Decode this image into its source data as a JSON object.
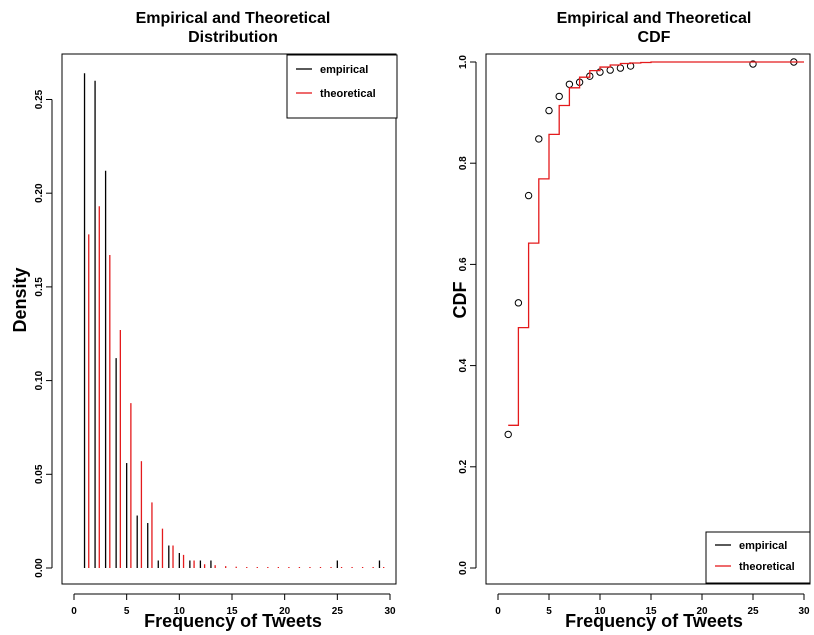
{
  "colors": {
    "empirical": "#000000",
    "theoretical": "#e41a1c"
  },
  "chart_data": [
    {
      "type": "bar",
      "title": "Empirical and Theoretical\nDistribution",
      "xlabel": "Frequency of Tweets",
      "ylabel": "Density",
      "xlim": [
        0,
        30
      ],
      "ylim": [
        0,
        0.27
      ],
      "xticks": [
        0,
        5,
        10,
        15,
        20,
        25,
        30
      ],
      "yticks": [
        0.0,
        0.05,
        0.1,
        0.15,
        0.2,
        0.25
      ],
      "legend": {
        "placement": "top-right",
        "entries": [
          "empirical",
          "theoretical"
        ]
      },
      "series": [
        {
          "name": "empirical",
          "x": [
            1,
            2,
            3,
            4,
            5,
            6,
            7,
            8,
            9,
            10,
            11,
            12,
            13,
            25,
            29
          ],
          "values": [
            0.264,
            0.26,
            0.212,
            0.112,
            0.056,
            0.028,
            0.024,
            0.004,
            0.012,
            0.008,
            0.004,
            0.004,
            0.004,
            0.004,
            0.004
          ]
        },
        {
          "name": "theoretical",
          "x": [
            1.4,
            2.4,
            3.4,
            4.4,
            5.4,
            6.4,
            7.4,
            8.4,
            9.4,
            10.4,
            11.4,
            12.4,
            13.4,
            14.4,
            15.4,
            16.4,
            17.4,
            18.4,
            19.4,
            20.4,
            21.4,
            22.4,
            23.4,
            24.4,
            25.4,
            26.4,
            27.4,
            28.4,
            29.4
          ],
          "values": [
            0.178,
            0.193,
            0.167,
            0.127,
            0.088,
            0.057,
            0.035,
            0.021,
            0.012,
            0.007,
            0.004,
            0.002,
            0.0015,
            0.001,
            0.0007,
            0.0005,
            0.0004,
            0.0003,
            0.0002,
            0.0002,
            0.0001,
            0.0001,
            0.0001,
            0.0001,
            0.0001,
            0.0001,
            0.0001,
            0.0001,
            0.0001
          ]
        }
      ]
    },
    {
      "type": "line",
      "title": "Empirical and Theoretical\nCDF",
      "xlabel": "Frequency of Tweets",
      "ylabel": "CDF",
      "xlim": [
        0,
        30
      ],
      "ylim": [
        0,
        1
      ],
      "xticks": [
        0,
        5,
        10,
        15,
        20,
        25,
        30
      ],
      "yticks": [
        0.0,
        0.2,
        0.4,
        0.6,
        0.8,
        1.0
      ],
      "legend": {
        "placement": "bottom-right",
        "entries": [
          "empirical",
          "theoretical"
        ]
      },
      "series": [
        {
          "name": "empirical",
          "style": "points",
          "x": [
            1,
            2,
            3,
            4,
            5,
            6,
            7,
            8,
            9,
            10,
            11,
            12,
            13,
            25,
            29
          ],
          "y": [
            0.264,
            0.524,
            0.736,
            0.848,
            0.904,
            0.932,
            0.956,
            0.96,
            0.972,
            0.98,
            0.984,
            0.988,
            0.992,
            0.996,
            1.0
          ]
        },
        {
          "name": "theoretical",
          "style": "step",
          "x": [
            1,
            2,
            3,
            4,
            5,
            6,
            7,
            8,
            9,
            10,
            11,
            12,
            13,
            14,
            15,
            30
          ],
          "y": [
            0.282,
            0.475,
            0.642,
            0.769,
            0.857,
            0.914,
            0.949,
            0.97,
            0.983,
            0.99,
            0.994,
            0.997,
            0.998,
            0.999,
            1.0,
            1.0
          ]
        }
      ]
    }
  ]
}
